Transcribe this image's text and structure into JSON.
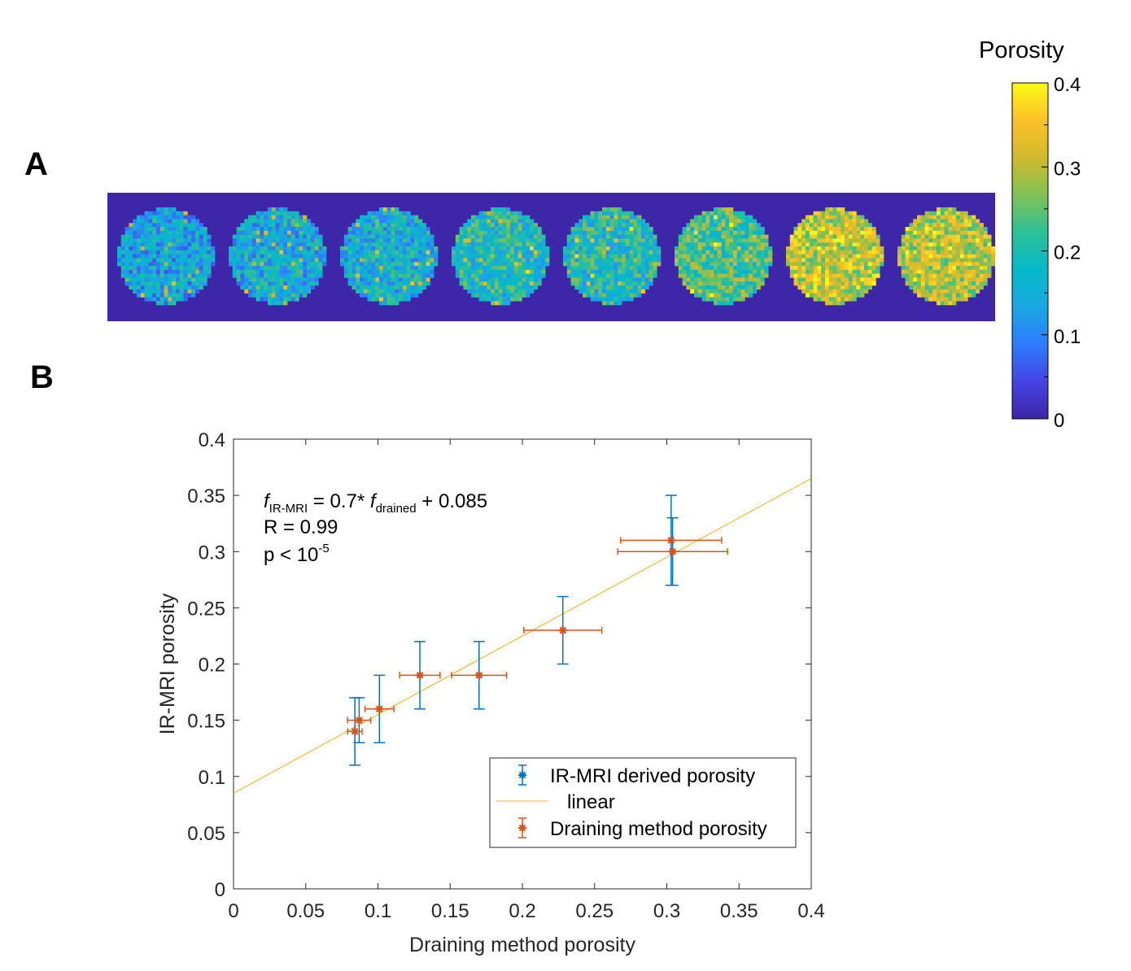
{
  "panels": {
    "a": "A",
    "b": "B"
  },
  "colorbar": {
    "title": "Porosity",
    "ticks": [
      "0.4",
      "0.3",
      "0.2",
      "0.1",
      "0"
    ],
    "tick_values": [
      0.4,
      0.3,
      0.2,
      0.1,
      0
    ],
    "range": [
      0,
      0.4
    ],
    "colormap": [
      "#3e26a8",
      "#4543e3",
      "#2f7cfe",
      "#1aa7e1",
      "#04bac7",
      "#2ec097",
      "#81c156",
      "#d0ba2e",
      "#fdc129",
      "#f9fb14"
    ]
  },
  "sample_maps": {
    "mean_porosity": [
      0.14,
      0.15,
      0.16,
      0.19,
      0.19,
      0.23,
      0.31,
      0.3
    ],
    "background_color": "#3e26a8"
  },
  "chart_data": {
    "type": "scatter",
    "xlabel": "Draining method porosity",
    "ylabel": "IR-MRI porosity",
    "xlim": [
      0,
      0.4
    ],
    "ylim": [
      0,
      0.4
    ],
    "xticks": [
      "0",
      "0.05",
      "0.1",
      "0.15",
      "0.2",
      "0.25",
      "0.3",
      "0.35",
      "0.4"
    ],
    "yticks": [
      "0",
      "0.05",
      "0.1",
      "0.15",
      "0.2",
      "0.25",
      "0.3",
      "0.35",
      "0.4"
    ],
    "grid": false,
    "legend_position": "bottom-right",
    "annotation": {
      "eq_f1": "f",
      "eq_sub1": "IR-MRI",
      "eq_mid": " = 0.7* ",
      "eq_f2": "f",
      "eq_sub2": "drained",
      "eq_end": " + 0.085",
      "r_line": "R = 0.99",
      "p_base": "p < 10",
      "p_sup": "-5"
    },
    "series": [
      {
        "name": "IR-MRI derived porosity",
        "color": "#0072bd",
        "x": [
          0.084,
          0.087,
          0.101,
          0.129,
          0.17,
          0.228,
          0.303,
          0.304
        ],
        "y": [
          0.14,
          0.15,
          0.16,
          0.19,
          0.19,
          0.23,
          0.31,
          0.3
        ],
        "yerr": [
          0.03,
          0.02,
          0.03,
          0.03,
          0.03,
          0.03,
          0.04,
          0.03
        ]
      },
      {
        "name": "linear",
        "color": "#edb120",
        "slope": 0.7,
        "intercept": 0.085
      },
      {
        "name": "Draining method porosity",
        "color": "#d95319",
        "x": [
          0.084,
          0.087,
          0.101,
          0.129,
          0.17,
          0.228,
          0.303,
          0.304
        ],
        "y": [
          0.14,
          0.15,
          0.16,
          0.19,
          0.19,
          0.23,
          0.31,
          0.3
        ],
        "xerr": [
          0.005,
          0.008,
          0.01,
          0.014,
          0.019,
          0.027,
          0.035,
          0.038
        ]
      }
    ]
  }
}
